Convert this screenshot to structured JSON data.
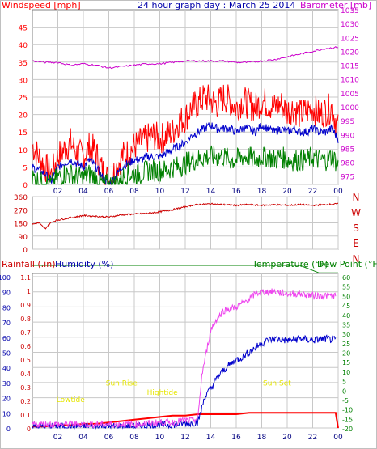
{
  "page": {
    "background": "#ffffff"
  },
  "chart_data": [
    {
      "id": "wind",
      "type": "line",
      "title": "24 hour graph day : March 25 2014",
      "left_label": "Windspeed [mph]",
      "right_label": "Barometer [mb]",
      "x_ticks": [
        "02",
        "04",
        "06",
        "08",
        "10",
        "12",
        "14",
        "16",
        "18",
        "20",
        "22",
        "00"
      ],
      "x_range_hours": [
        0,
        24
      ],
      "y_left_ticks": [
        0,
        5,
        10,
        15,
        20,
        25,
        30,
        35,
        40,
        45
      ],
      "y_left_range": [
        0,
        50
      ],
      "y_right_ticks": [
        975,
        980,
        985,
        990,
        995,
        1000,
        1005,
        1010,
        1015,
        1020,
        1025,
        1030,
        1035
      ],
      "y_right_range": [
        972,
        1035
      ],
      "grid": true,
      "colors": {
        "left": "#ff0000",
        "right": "#cc00cc",
        "title": "#0000aa",
        "frame": "#808080",
        "grid": "#c8c8c8"
      },
      "series": [
        {
          "name": "Windspeed",
          "axis": "left",
          "color": "#ff0000",
          "x": [
            0,
            0.5,
            1,
            1.5,
            2,
            2.5,
            3,
            3.5,
            4,
            4.5,
            5,
            5.5,
            6,
            6.5,
            7,
            7.5,
            8,
            8.5,
            9,
            9.5,
            10,
            10.5,
            11,
            11.5,
            12,
            12.5,
            13,
            13.5,
            14,
            14.5,
            15,
            15.5,
            16,
            16.5,
            17,
            17.5,
            18,
            18.5,
            19,
            19.5,
            20,
            20.5,
            21,
            21.5,
            22,
            22.5,
            23,
            23.5,
            24
          ],
          "values": [
            11,
            8,
            5,
            3,
            8,
            10,
            12,
            9,
            8,
            11,
            9,
            4,
            1,
            4,
            8,
            9,
            11,
            12,
            13,
            14,
            13,
            14,
            15,
            18,
            19,
            22,
            23,
            25,
            24,
            23,
            25,
            24,
            22,
            24,
            23,
            22,
            24,
            23,
            22,
            23,
            21,
            22,
            20,
            21,
            22,
            20,
            21,
            22,
            16
          ]
        },
        {
          "name": "Wind average",
          "axis": "left",
          "color": "#0000cc",
          "x": [
            0,
            0.5,
            1,
            1.5,
            2,
            2.5,
            3,
            3.5,
            4,
            4.5,
            5,
            5.5,
            6,
            6.5,
            7,
            7.5,
            8,
            8.5,
            9,
            9.5,
            10,
            10.5,
            11,
            11.5,
            12,
            12.5,
            13,
            13.5,
            14,
            14.5,
            15,
            15.5,
            16,
            16.5,
            17,
            17.5,
            18,
            18.5,
            19,
            19.5,
            20,
            20.5,
            21,
            21.5,
            22,
            22.5,
            23,
            23.5,
            24
          ],
          "values": [
            5,
            4,
            3,
            1,
            5,
            6,
            7,
            6,
            5,
            7,
            5,
            2,
            0,
            2,
            5,
            6,
            7,
            7,
            8,
            8,
            8,
            9,
            10,
            11,
            12,
            14,
            15,
            16,
            17,
            16,
            16,
            16,
            15,
            16,
            16,
            15,
            17,
            16,
            15,
            16,
            15,
            16,
            15,
            15,
            16,
            15,
            15,
            16,
            13
          ]
        },
        {
          "name": "Wind gust low",
          "axis": "left",
          "color": "#008000",
          "x": [
            0,
            0.5,
            1,
            1.5,
            2,
            2.5,
            3,
            3.5,
            4,
            4.5,
            5,
            5.5,
            6,
            6.5,
            7,
            7.5,
            8,
            8.5,
            9,
            9.5,
            10,
            10.5,
            11,
            11.5,
            12,
            12.5,
            13,
            13.5,
            14,
            14.5,
            15,
            15.5,
            16,
            16.5,
            17,
            17.5,
            18,
            18.5,
            19,
            19.5,
            20,
            20.5,
            21,
            21.5,
            22,
            22.5,
            23,
            23.5,
            24
          ],
          "values": [
            2,
            1,
            0,
            0,
            2,
            3,
            3,
            2,
            2,
            3,
            2,
            0,
            0,
            0,
            2,
            3,
            3,
            3,
            4,
            4,
            4,
            4,
            5,
            5,
            6,
            7,
            7,
            8,
            8,
            8,
            8,
            7,
            7,
            8,
            8,
            7,
            8,
            8,
            7,
            8,
            7,
            7,
            7,
            7,
            8,
            7,
            7,
            8,
            6
          ]
        },
        {
          "name": "Barometer",
          "axis": "right",
          "color": "#cc00cc",
          "x": [
            0,
            1,
            2,
            3,
            4,
            5,
            6,
            7,
            8,
            9,
            10,
            11,
            12,
            13,
            14,
            15,
            16,
            17,
            18,
            19,
            20,
            21,
            22,
            23,
            24
          ],
          "values": [
            1016.5,
            1016,
            1016,
            1015,
            1015.5,
            1015,
            1014,
            1014.5,
            1015,
            1015.5,
            1015.5,
            1016,
            1016.5,
            1016.5,
            1016.5,
            1016.5,
            1016,
            1016,
            1016.5,
            1017,
            1018,
            1019,
            1020,
            1021,
            1021.5
          ]
        }
      ]
    },
    {
      "id": "direction",
      "type": "line",
      "y_left_ticks": [
        0,
        90,
        180,
        270,
        360
      ],
      "y_left_range": [
        0,
        360
      ],
      "compass_labels": [
        "N",
        "W",
        "S",
        "E",
        "N"
      ],
      "x_range_hours": [
        0,
        24
      ],
      "grid": true,
      "series": [
        {
          "name": "Wind direction",
          "color": "#cc0000",
          "x": [
            0,
            0.5,
            1,
            1.5,
            2,
            3,
            4,
            5,
            6,
            7,
            8,
            9,
            10,
            11,
            12,
            12.5,
            13,
            14,
            15,
            16,
            17,
            18,
            19,
            20,
            21,
            22,
            23,
            24
          ],
          "values": [
            170,
            180,
            140,
            185,
            200,
            215,
            230,
            225,
            220,
            235,
            240,
            245,
            255,
            270,
            290,
            300,
            305,
            310,
            305,
            300,
            305,
            300,
            305,
            300,
            305,
            300,
            305,
            310
          ]
        }
      ]
    },
    {
      "id": "rain-temp",
      "type": "line",
      "rain_label": "Rainfall (.in)",
      "humidity_label": "Humidity (%)",
      "temperature_label": "Temperature (°F)",
      "dewpoint_label": "Dew Point (°F)",
      "rain_ticks": [
        "0",
        "0.1",
        "0.2",
        "0.3",
        "0.4",
        "0.5",
        "0.6",
        "0.7",
        "0.8",
        "0.9",
        "1",
        "1.1"
      ],
      "rain_range": [
        0,
        1.1
      ],
      "humidity_ticks": [
        0,
        10,
        20,
        30,
        40,
        50,
        60,
        70,
        80,
        90,
        100
      ],
      "humidity_range": [
        0,
        100
      ],
      "temperature_ticks": [
        -20,
        -15,
        -10,
        -5,
        0,
        5,
        10,
        15,
        20,
        25,
        30,
        35,
        40,
        45,
        50,
        55,
        60
      ],
      "temperature_range": [
        -20,
        60
      ],
      "x_ticks": [
        "02",
        "04",
        "06",
        "08",
        "10",
        "12",
        "14",
        "16",
        "18",
        "20",
        "22",
        "00"
      ],
      "x_range_hours": [
        0,
        24
      ],
      "annotations": [
        {
          "text": "Lowtide",
          "hour": 3.0,
          "height_pct": 17
        },
        {
          "text": "Sun Rise",
          "hour": 7.0,
          "height_pct": 28
        },
        {
          "text": "Hightide",
          "hour": 10.2,
          "height_pct": 22
        },
        {
          "text": "Sun Set",
          "hour": 19.2,
          "height_pct": 28
        }
      ],
      "annotation_color": "#e6e600",
      "grid": true,
      "series": [
        {
          "name": "Rainfall",
          "axis": "rain",
          "color": "#ff0000",
          "x": [
            0,
            1,
            2,
            3,
            4,
            5,
            6,
            7,
            8,
            9,
            10,
            11,
            12,
            13,
            14,
            15,
            16,
            17,
            18,
            19,
            20,
            21,
            22,
            23,
            23.8,
            24
          ],
          "values": [
            0.01,
            0.01,
            0.02,
            0.02,
            0.03,
            0.03,
            0.04,
            0.05,
            0.06,
            0.07,
            0.08,
            0.09,
            0.09,
            0.1,
            0.1,
            0.1,
            0.1,
            0.11,
            0.11,
            0.11,
            0.11,
            0.11,
            0.11,
            0.11,
            0.11,
            0.0
          ]
        },
        {
          "name": "Humidity",
          "axis": "humidity",
          "color": "#0000cc",
          "x": [
            0,
            2,
            4,
            6,
            8,
            10,
            11,
            12,
            12.5,
            13,
            13.2,
            13.5,
            14,
            14.5,
            15,
            15.5,
            16,
            16.5,
            17,
            17.5,
            18,
            18.5,
            19,
            20,
            21,
            22,
            23,
            23.8
          ],
          "values": [
            1,
            1,
            1,
            1,
            1,
            2,
            2,
            3,
            3,
            4,
            10,
            20,
            26,
            33,
            38,
            42,
            45,
            47,
            50,
            53,
            56,
            58,
            59,
            58,
            59,
            58,
            59,
            58
          ]
        },
        {
          "name": "Temperature",
          "axis": "temperature",
          "color": "#ee44ee",
          "x": [
            0,
            2,
            4,
            6,
            8,
            10,
            11,
            12,
            12.5,
            13,
            13.3,
            13.6,
            14,
            14.5,
            15,
            15.5,
            16,
            16.5,
            17,
            17.5,
            18,
            18.5,
            19,
            20,
            21,
            22,
            23,
            23.8
          ],
          "values": [
            -18,
            -18,
            -18,
            -18,
            -18,
            -17,
            -17,
            -16,
            -16,
            -15,
            8,
            18,
            32,
            38,
            42,
            43,
            44,
            46,
            48,
            51,
            52,
            52,
            52,
            51,
            51,
            50,
            50,
            50
          ]
        },
        {
          "name": "Dew Point",
          "axis": "temperature",
          "color": "#008000",
          "x": [
            0,
            4,
            8,
            12,
            16,
            18,
            21,
            22.5,
            24
          ],
          "values": [
            66,
            66,
            66,
            66,
            66,
            66,
            66,
            62,
            62
          ]
        }
      ]
    }
  ]
}
